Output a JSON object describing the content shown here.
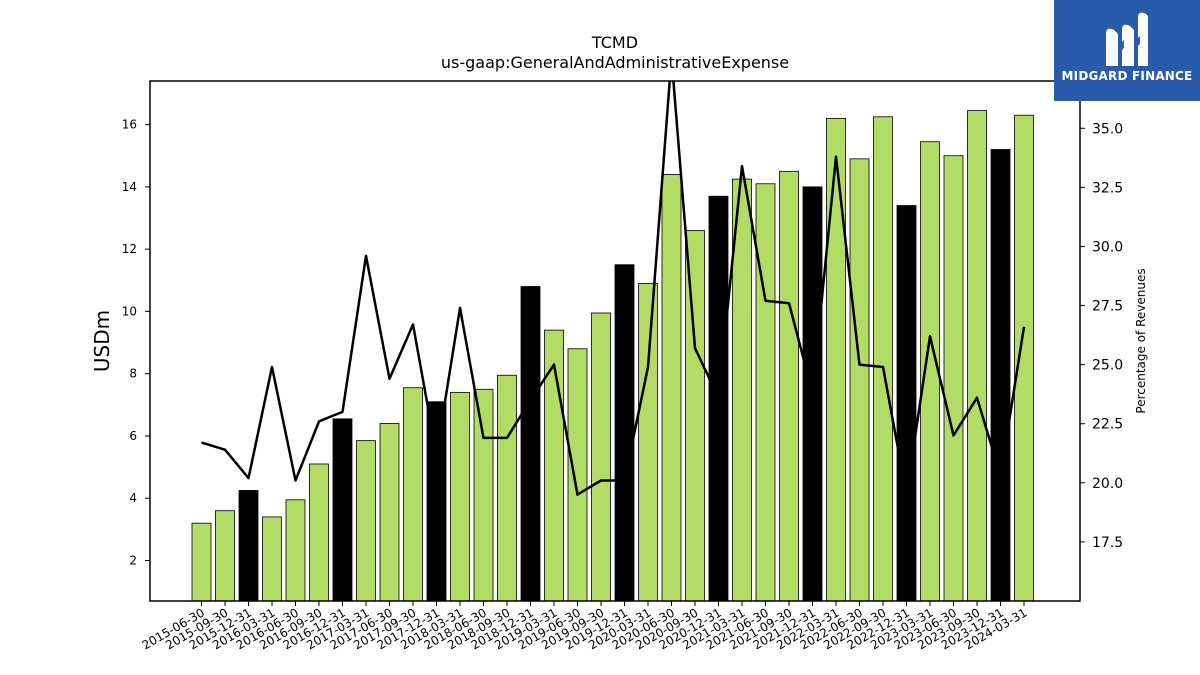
{
  "brand": {
    "name": "MIDGARD FINANCE",
    "bg_color": "#2a5aaa"
  },
  "chart_data": {
    "type": "bar",
    "title": "TCMD",
    "subtitle": "us-gaap:GeneralAndAdministrativeExpense",
    "ylabel": "USDm",
    "y2label": "Percentage of Revenues",
    "ylim": [
      0.7,
      17.4
    ],
    "y2lim": [
      15.0,
      37.0
    ],
    "yticks": [
      2,
      4,
      6,
      8,
      10,
      12,
      14,
      16
    ],
    "y2ticks": [
      "17.5",
      "20.0",
      "22.5",
      "25.0",
      "27.5",
      "30.0",
      "32.5",
      "35.0"
    ],
    "grid": false,
    "colors": {
      "quarter": "#b2dc65",
      "year_end": "#000000",
      "line": "#000000"
    },
    "categories": [
      "2015-06-30",
      "2015-09-30",
      "2015-12-31",
      "2016-03-31",
      "2016-06-30",
      "2016-09-30",
      "2016-12-31",
      "2017-03-31",
      "2017-06-30",
      "2017-09-30",
      "2017-12-31",
      "2018-03-31",
      "2018-06-30",
      "2018-09-30",
      "2018-12-31",
      "2019-03-31",
      "2019-06-30",
      "2019-09-30",
      "2019-12-31",
      "2020-03-31",
      "2020-06-30",
      "2020-09-30",
      "2020-12-31",
      "2021-03-31",
      "2021-06-30",
      "2021-09-30",
      "2021-12-31",
      "2022-03-31",
      "2022-06-30",
      "2022-09-30",
      "2022-12-31",
      "2023-03-31",
      "2023-06-30",
      "2023-09-30",
      "2023-12-31",
      "2024-03-31"
    ],
    "series": [
      {
        "kind": "bar",
        "values": [
          3.2,
          3.6,
          4.25,
          3.4,
          3.95,
          5.1,
          6.55,
          5.85,
          6.4,
          7.55,
          7.1,
          7.4,
          7.5,
          7.95,
          10.8,
          9.4,
          8.8,
          9.95,
          11.5,
          10.9,
          14.4,
          12.6,
          13.7,
          14.25,
          14.1,
          14.5,
          14.0,
          16.2,
          14.9,
          16.25,
          13.4,
          15.45,
          15.0,
          16.45,
          15.2,
          16.3
        ],
        "year_end": [
          false,
          false,
          true,
          false,
          false,
          false,
          true,
          false,
          false,
          false,
          true,
          false,
          false,
          false,
          true,
          false,
          false,
          false,
          true,
          false,
          false,
          false,
          true,
          false,
          false,
          false,
          true,
          false,
          false,
          false,
          true,
          false,
          false,
          false,
          true,
          false
        ]
      },
      {
        "kind": "line",
        "axis": "right",
        "values": [
          21.7,
          21.4,
          20.2,
          24.9,
          20.1,
          22.6,
          23.0,
          29.6,
          24.4,
          26.7,
          21.2,
          27.4,
          21.9,
          21.9,
          23.5,
          25.0,
          19.5,
          20.1,
          20.1,
          24.9,
          38.0,
          25.7,
          23.6,
          33.4,
          27.7,
          27.6,
          23.8,
          33.8,
          25.0,
          24.9,
          19.5,
          26.2,
          22.0,
          23.6,
          20.3,
          26.6
        ]
      }
    ]
  }
}
